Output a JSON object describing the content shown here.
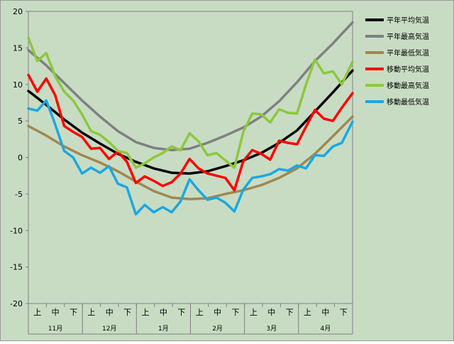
{
  "chart_data": {
    "type": "line",
    "x_units": "days from Nov 1 (0-181)",
    "ylim": [
      -20,
      20
    ],
    "yticks": [
      -20,
      -15,
      -10,
      -5,
      0,
      5,
      10,
      15,
      20
    ],
    "grid": false,
    "legend_position": "right",
    "sub_labels": [
      "上",
      "中",
      "下",
      "上",
      "中",
      "下",
      "上",
      "中",
      "下",
      "上",
      "中",
      "下",
      "上",
      "中",
      "下",
      "上",
      "中",
      "下"
    ],
    "months": [
      "11月",
      "12月",
      "1月",
      "2月",
      "3月",
      "4月"
    ],
    "series": [
      {
        "name": "平年平均気温",
        "color": "#000000",
        "x": [
          0,
          10,
          20,
          30,
          40,
          50,
          60,
          70,
          80,
          90,
          100,
          110,
          120,
          130,
          140,
          150,
          160,
          170,
          181
        ],
        "y": [
          9.1,
          7.2,
          5.2,
          3.4,
          1.9,
          0.5,
          -0.6,
          -1.5,
          -2.1,
          -2.2,
          -1.9,
          -1.2,
          -0.4,
          0.6,
          2.0,
          3.7,
          6.3,
          8.9,
          11.9
        ]
      },
      {
        "name": "平年最高気温",
        "color": "#808080",
        "x": [
          0,
          10,
          20,
          30,
          40,
          50,
          60,
          70,
          80,
          90,
          100,
          110,
          120,
          130,
          140,
          150,
          160,
          170,
          181
        ],
        "y": [
          14.7,
          12.6,
          10.2,
          7.8,
          5.6,
          3.6,
          2.1,
          1.3,
          1.0,
          1.2,
          2.0,
          3.0,
          4.1,
          5.6,
          7.7,
          10.3,
          13.2,
          15.6,
          18.5
        ]
      },
      {
        "name": "平年最低気温",
        "color": "#A08850",
        "x": [
          0,
          10,
          20,
          30,
          40,
          50,
          60,
          70,
          80,
          90,
          100,
          110,
          120,
          130,
          140,
          150,
          160,
          170,
          181
        ],
        "y": [
          4.3,
          3.0,
          1.5,
          0.3,
          -0.7,
          -1.9,
          -3.3,
          -4.6,
          -5.5,
          -5.7,
          -5.6,
          -5.0,
          -4.5,
          -3.8,
          -2.8,
          -1.5,
          0.5,
          2.9,
          5.6
        ]
      },
      {
        "name": "移動平均気温",
        "color": "#FF0000",
        "x": [
          0,
          5,
          10,
          15,
          20,
          25,
          30,
          35,
          40,
          45,
          50,
          55,
          60,
          65,
          70,
          75,
          80,
          85,
          90,
          95,
          100,
          105,
          110,
          115,
          120,
          125,
          130,
          135,
          140,
          145,
          150,
          155,
          160,
          165,
          170,
          175,
          181
        ],
        "y": [
          11.3,
          9.0,
          10.8,
          8.5,
          4.3,
          3.5,
          2.8,
          1.2,
          1.3,
          -0.2,
          0.8,
          -0.6,
          -3.5,
          -2.6,
          -3.2,
          -3.9,
          -3.4,
          -2.2,
          -0.2,
          -1.5,
          -2.2,
          -2.5,
          -2.8,
          -4.5,
          -0.5,
          1.0,
          0.5,
          -0.3,
          2.3,
          2.0,
          1.8,
          4.2,
          6.5,
          5.3,
          5.0,
          6.8,
          8.8
        ]
      },
      {
        "name": "移動最高気温",
        "color": "#8DC83C",
        "x": [
          0,
          5,
          10,
          15,
          20,
          25,
          30,
          35,
          40,
          45,
          50,
          55,
          60,
          65,
          70,
          75,
          80,
          85,
          90,
          95,
          100,
          105,
          110,
          115,
          120,
          125,
          130,
          135,
          140,
          145,
          150,
          155,
          160,
          165,
          170,
          175,
          181
        ],
        "y": [
          16.4,
          13.2,
          14.3,
          11.1,
          9.0,
          7.8,
          5.9,
          3.6,
          3.1,
          2.1,
          0.9,
          0.6,
          -1.4,
          -0.8,
          0.0,
          0.6,
          1.5,
          1.0,
          3.3,
          2.2,
          0.3,
          0.6,
          -0.4,
          -1.4,
          3.5,
          6.0,
          5.9,
          4.8,
          6.6,
          6.1,
          6.0,
          10.0,
          13.4,
          11.5,
          11.8,
          10.0,
          13.1
        ]
      },
      {
        "name": "移動最低気温",
        "color": "#1BA8E0",
        "x": [
          0,
          5,
          10,
          15,
          20,
          25,
          30,
          35,
          40,
          45,
          50,
          55,
          60,
          65,
          70,
          75,
          80,
          85,
          90,
          95,
          100,
          105,
          110,
          115,
          120,
          125,
          130,
          135,
          140,
          145,
          150,
          155,
          160,
          165,
          170,
          175,
          181
        ],
        "y": [
          6.7,
          6.4,
          7.8,
          4.5,
          0.9,
          0.0,
          -2.2,
          -1.4,
          -2.1,
          -1.2,
          -3.6,
          -4.1,
          -7.8,
          -6.5,
          -7.5,
          -6.8,
          -7.5,
          -6.0,
          -3.0,
          -4.5,
          -5.8,
          -5.5,
          -6.2,
          -7.4,
          -4.4,
          -2.8,
          -2.6,
          -2.3,
          -1.6,
          -1.8,
          -1.1,
          -1.5,
          0.3,
          0.2,
          1.5,
          2.0,
          4.9
        ]
      }
    ]
  }
}
